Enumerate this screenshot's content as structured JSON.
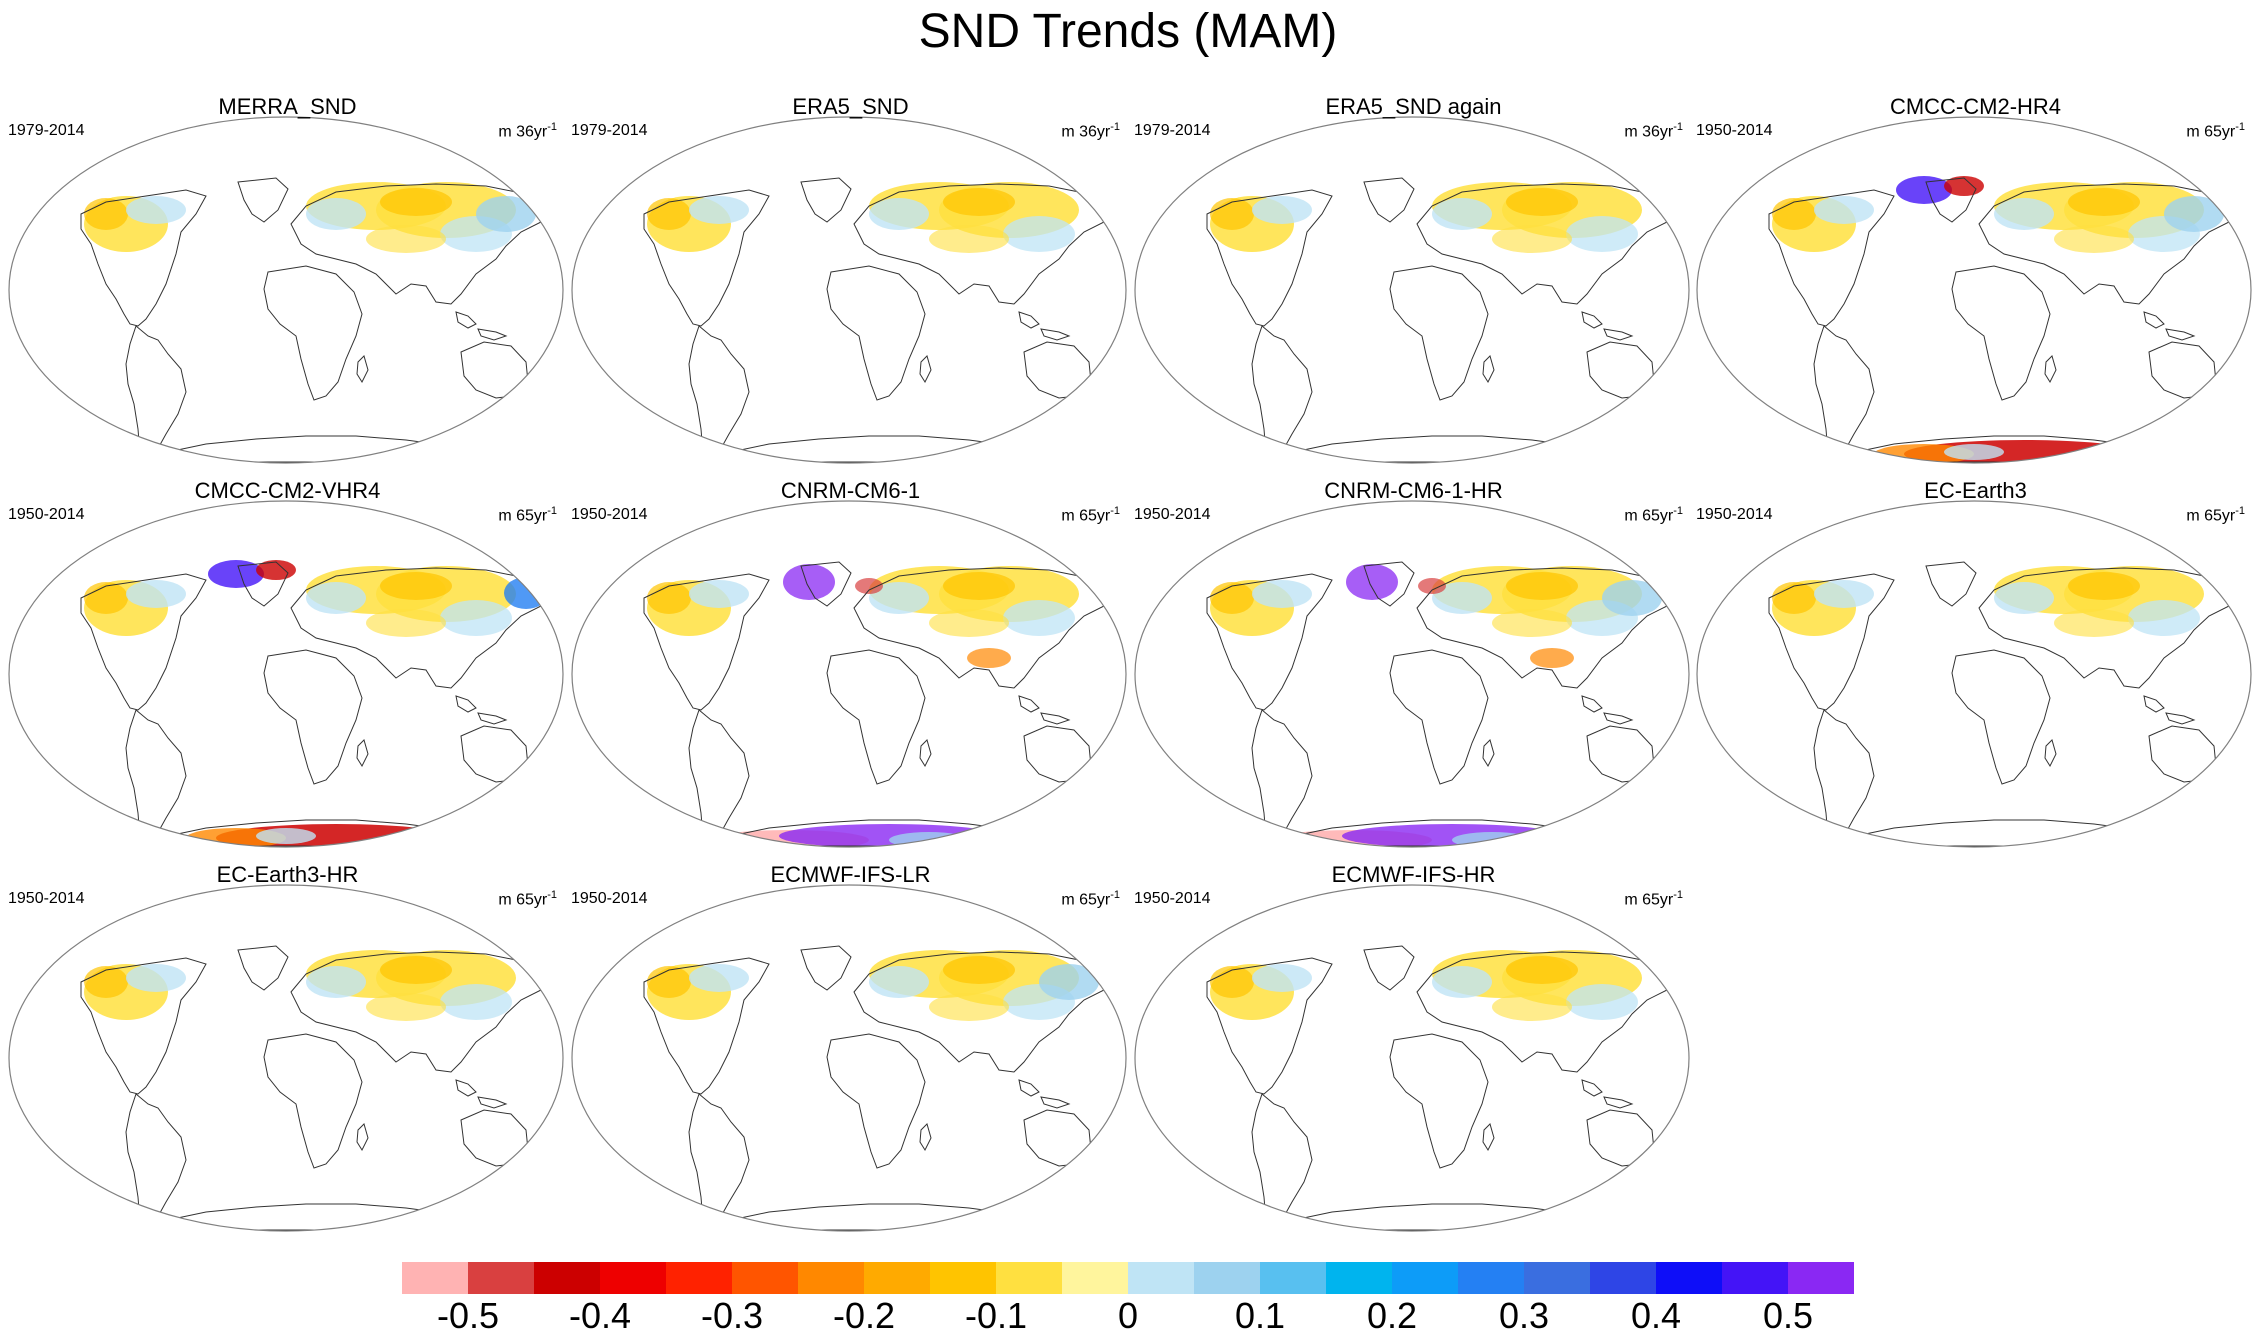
{
  "title": "SND Trends (MAM)",
  "colors": {
    "frame": "#808080",
    "coast": "#333333",
    "colorbar": [
      "#ffb3b3",
      "#d94040",
      "#cc0000",
      "#ee0000",
      "#ff2200",
      "#ff5500",
      "#ff8800",
      "#ffaa00",
      "#ffc400",
      "#ffe040",
      "#fff59d",
      "#bfe4f5",
      "#9dd2ef",
      "#58c0f0",
      "#00b4ee",
      "#0d9cf8",
      "#2480f3",
      "#3a6ee0",
      "#2e45e6",
      "#0e0ef8",
      "#4414f7",
      "#8a28f3"
    ]
  },
  "colorbar_labels": [
    "-0.5",
    "-0.4",
    "-0.3",
    "-0.2",
    "-0.1",
    "0",
    "0.1",
    "0.2",
    "0.3",
    "0.4",
    "0.5"
  ],
  "panels": [
    {
      "title": "MERRA_SND",
      "period": "1979-2014",
      "units": "m 36yr",
      "units_sup": "-1",
      "antarctic": "none"
    },
    {
      "title": "ERA5_SND",
      "period": "1979-2014",
      "units": "m 36yr",
      "units_sup": "-1",
      "antarctic": "none"
    },
    {
      "title": "ERA5_SND again",
      "period": "1979-2014",
      "units": "m 36yr",
      "units_sup": "-1",
      "antarctic": "none"
    },
    {
      "title": "CMCC-CM2-HR4",
      "period": "1950-2014",
      "units": "m 65yr",
      "units_sup": "-1",
      "antarctic": "red"
    },
    {
      "title": "CMCC-CM2-VHR4",
      "period": "1950-2014",
      "units": "m 65yr",
      "units_sup": "-1",
      "antarctic": "red"
    },
    {
      "title": "CNRM-CM6-1",
      "period": "1950-2014",
      "units": "m 65yr",
      "units_sup": "-1",
      "antarctic": "purple"
    },
    {
      "title": "CNRM-CM6-1-HR",
      "period": "1950-2014",
      "units": "m 65yr",
      "units_sup": "-1",
      "antarctic": "purple"
    },
    {
      "title": "EC-Earth3",
      "period": "1950-2014",
      "units": "m 65yr",
      "units_sup": "-1",
      "antarctic": "none"
    },
    {
      "title": "EC-Earth3-HR",
      "period": "1950-2014",
      "units": "m 65yr",
      "units_sup": "-1",
      "antarctic": "none"
    },
    {
      "title": "ECMWF-IFS-LR",
      "period": "1950-2014",
      "units": "m 65yr",
      "units_sup": "-1",
      "antarctic": "none"
    },
    {
      "title": "ECMWF-IFS-HR",
      "period": "1950-2014",
      "units": "m 65yr",
      "units_sup": "-1",
      "antarctic": "none"
    }
  ]
}
